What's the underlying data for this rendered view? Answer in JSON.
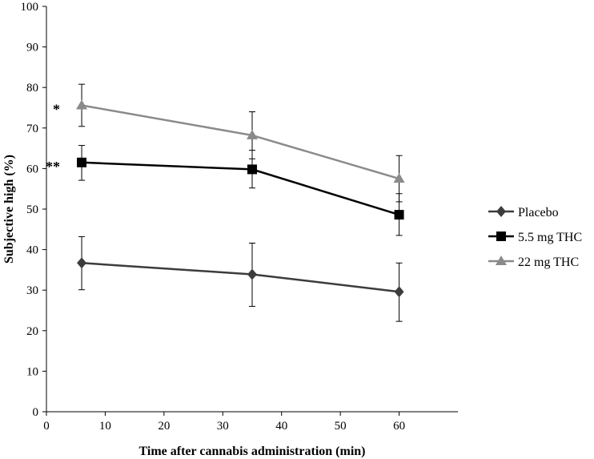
{
  "chart_data": {
    "type": "line",
    "title": "",
    "xlabel": "Time after cannabis administration (min)",
    "ylabel": "Subjective high (%)",
    "xlim": [
      0,
      70
    ],
    "ylim": [
      0,
      100
    ],
    "x_ticks": [
      0,
      10,
      20,
      30,
      40,
      50,
      60
    ],
    "y_ticks": [
      0,
      10,
      20,
      30,
      40,
      50,
      60,
      70,
      80,
      90,
      100
    ],
    "grid": false,
    "legend_position": "right",
    "series": [
      {
        "name": "Placebo",
        "marker": "diamond",
        "color": "#3c3c3c",
        "x": [
          6,
          35,
          60
        ],
        "y": [
          36.7,
          33.9,
          29.6
        ],
        "err_upper": [
          43.2,
          41.6,
          36.7
        ],
        "err_lower": [
          30.1,
          26.0,
          22.3
        ]
      },
      {
        "name": "5.5 mg THC",
        "marker": "square",
        "color": "#000000",
        "x": [
          6,
          35,
          60
        ],
        "y": [
          61.5,
          59.8,
          48.6
        ],
        "err_upper": [
          65.7,
          64.5,
          53.8
        ],
        "err_lower": [
          57.1,
          55.2,
          43.5
        ]
      },
      {
        "name": "22 mg THC",
        "marker": "triangle",
        "color": "#8a8a8a",
        "x": [
          6,
          35,
          60
        ],
        "y": [
          75.6,
          68.2,
          57.5
        ],
        "err_upper": [
          80.8,
          74.0,
          63.2
        ],
        "err_lower": [
          70.4,
          62.4,
          51.8
        ]
      }
    ],
    "annotations": [
      {
        "text": "*",
        "x": 6,
        "y": 75.6
      },
      {
        "text": "**",
        "x": 6,
        "y": 61.5
      }
    ]
  }
}
